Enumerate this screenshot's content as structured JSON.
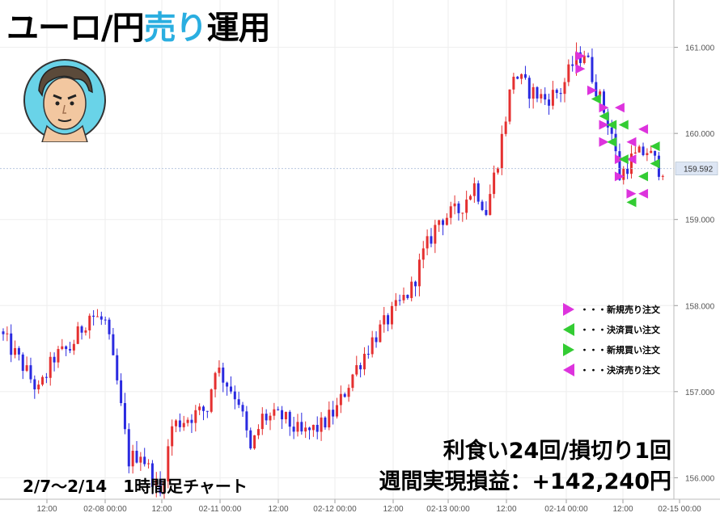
{
  "title": {
    "main": "ユーロ/円",
    "accent": "売り",
    "tail": "運用"
  },
  "summary": {
    "line1": "利食い24回/損切り1回",
    "line2": "週間実現損益：+142,240円"
  },
  "period_label": "2/7〜2/14　1時間足チャート",
  "legend": [
    {
      "label": "・・・新規売り注文",
      "color": "#dd33dd",
      "direction": "right",
      "icon": "triangle-right-icon"
    },
    {
      "label": "・・・決済買い注文",
      "color": "#33cc33",
      "direction": "left",
      "icon": "triangle-left-icon"
    },
    {
      "label": "・・・新規買い注文",
      "color": "#33cc33",
      "direction": "right",
      "icon": "triangle-right-icon"
    },
    {
      "label": "・・・決済売り注文",
      "color": "#dd33dd",
      "direction": "left",
      "icon": "triangle-left-icon"
    }
  ],
  "chart_data": {
    "type": "candlestick",
    "title": "",
    "xlabel": "",
    "ylabel": "",
    "ylim": [
      155.75,
      161.55
    ],
    "y_ticks": [
      "156.000",
      "157.000",
      "158.000",
      "159.000",
      "160.000",
      "161.000"
    ],
    "x_ticks": [
      "12:00",
      "02-08 00:00",
      "12:00",
      "02-11 00:00",
      "12:00",
      "02-12 00:00",
      "12:00",
      "02-13 00:00",
      "12:00",
      "02-14 00:00",
      "12:00",
      "02-15 00:00"
    ],
    "current_price": "159.592",
    "colors": {
      "up": "#e53030",
      "down": "#2a2ae0",
      "grid": "#eeeeee",
      "price_tag_bg": "#dde6f4"
    },
    "grid": true,
    "waypoints": [
      [
        0,
        157.7
      ],
      [
        6,
        157.3
      ],
      [
        10,
        157.0
      ],
      [
        14,
        157.4
      ],
      [
        18,
        157.5
      ],
      [
        23,
        157.9
      ],
      [
        27,
        157.8
      ],
      [
        30,
        157.1
      ],
      [
        33,
        156.2
      ],
      [
        36,
        156.3
      ],
      [
        41,
        155.8
      ],
      [
        44,
        156.6
      ],
      [
        48,
        156.7
      ],
      [
        53,
        156.8
      ],
      [
        55,
        157.3
      ],
      [
        58,
        157.1
      ],
      [
        61,
        156.9
      ],
      [
        64,
        156.3
      ],
      [
        67,
        156.7
      ],
      [
        72,
        156.7
      ],
      [
        77,
        156.5
      ],
      [
        82,
        156.6
      ],
      [
        86,
        156.8
      ],
      [
        90,
        157.2
      ],
      [
        95,
        157.6
      ],
      [
        100,
        157.9
      ],
      [
        105,
        158.2
      ],
      [
        108,
        158.6
      ],
      [
        112,
        159.0
      ],
      [
        117,
        159.1
      ],
      [
        121,
        159.4
      ],
      [
        124,
        159.1
      ],
      [
        127,
        159.7
      ],
      [
        131,
        160.7
      ],
      [
        135,
        160.5
      ],
      [
        139,
        160.4
      ],
      [
        143,
        160.5
      ],
      [
        146,
        160.8
      ],
      [
        149,
        160.95
      ],
      [
        153,
        160.4
      ],
      [
        156,
        160.0
      ],
      [
        158,
        159.5
      ],
      [
        161,
        159.7
      ],
      [
        165,
        159.8
      ],
      [
        168,
        159.6
      ]
    ],
    "markers": [
      {
        "x": 147,
        "price": 160.9,
        "type": "new-sell"
      },
      {
        "x": 147,
        "price": 160.75,
        "type": "new-sell"
      },
      {
        "x": 150,
        "price": 160.5,
        "type": "new-sell"
      },
      {
        "x": 153,
        "price": 160.3,
        "type": "new-sell"
      },
      {
        "x": 153,
        "price": 160.1,
        "type": "new-sell"
      },
      {
        "x": 153,
        "price": 159.9,
        "type": "new-sell"
      },
      {
        "x": 157,
        "price": 159.7,
        "type": "new-sell"
      },
      {
        "x": 157,
        "price": 159.5,
        "type": "new-sell"
      },
      {
        "x": 160,
        "price": 159.3,
        "type": "new-sell"
      },
      {
        "x": 157,
        "price": 160.3,
        "type": "close-sell"
      },
      {
        "x": 160,
        "price": 159.9,
        "type": "close-sell"
      },
      {
        "x": 160,
        "price": 159.7,
        "type": "close-sell"
      },
      {
        "x": 163,
        "price": 159.3,
        "type": "close-sell"
      },
      {
        "x": 151,
        "price": 160.4,
        "type": "close-buy"
      },
      {
        "x": 153,
        "price": 160.2,
        "type": "close-buy"
      },
      {
        "x": 155,
        "price": 160.1,
        "type": "close-buy"
      },
      {
        "x": 158,
        "price": 160.1,
        "type": "close-buy"
      },
      {
        "x": 155,
        "price": 159.9,
        "type": "close-buy"
      },
      {
        "x": 158,
        "price": 159.7,
        "type": "close-buy"
      },
      {
        "x": 163,
        "price": 159.5,
        "type": "close-buy"
      },
      {
        "x": 160,
        "price": 159.2,
        "type": "close-buy"
      },
      {
        "x": 166,
        "price": 159.85,
        "type": "close-buy"
      },
      {
        "x": 166,
        "price": 159.65,
        "type": "close-buy"
      },
      {
        "x": 163,
        "price": 160.05,
        "type": "close-sell"
      }
    ]
  }
}
